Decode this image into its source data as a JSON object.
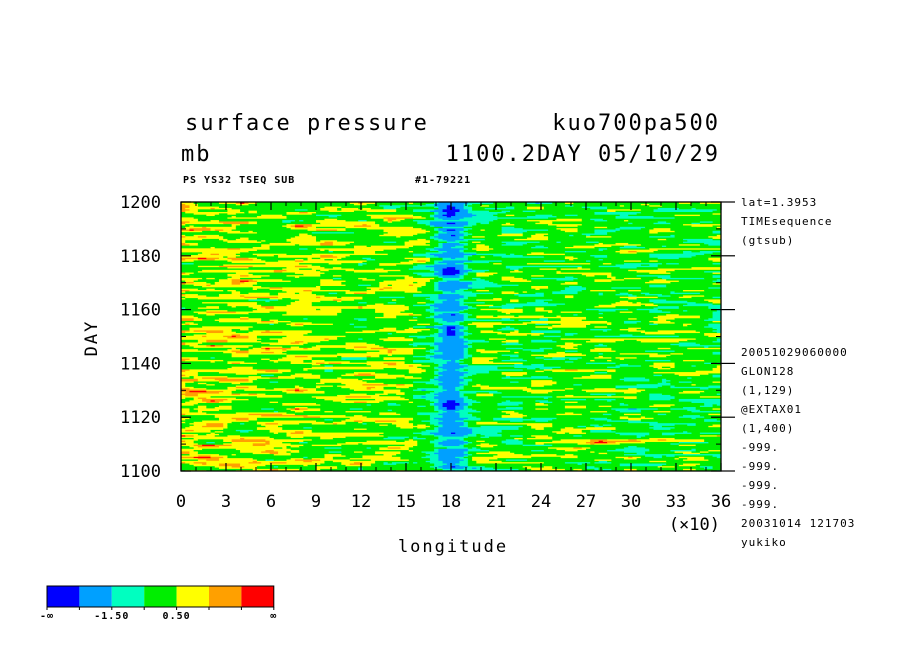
{
  "header": {
    "title_left": "surface pressure",
    "title_right": "kuo700pa500",
    "unit": "mb",
    "subtitle": "1100.2DAY 05/10/29",
    "small_left": "PS YS32 TSEQ SUB",
    "small_right": "#1-79221"
  },
  "side_info": {
    "top": [
      "lat=1.3953",
      "TIMEsequence",
      "(gtsub)"
    ],
    "bottom": [
      "20051029060000",
      "GLON128",
      "(1,129)",
      "@EXTAX01",
      "(1,400)",
      "-999.",
      "-999.",
      "-999.",
      "-999.",
      "20031014 121703",
      "yukiko"
    ]
  },
  "axes": {
    "xlabel": "longitude",
    "ylabel": "DAY",
    "x_multiplier": "(×10)",
    "x_ticks": [
      "0",
      "3",
      "6",
      "9",
      "12",
      "15",
      "18",
      "21",
      "24",
      "27",
      "30",
      "33",
      "36"
    ],
    "y_ticks": [
      "1100",
      "1120",
      "1140",
      "1160",
      "1180",
      "1200"
    ]
  },
  "colorbar": {
    "colors": [
      "#0000ff",
      "#00a0ff",
      "#00ffc0",
      "#00ee00",
      "#ffff00",
      "#ffa000",
      "#ff0000"
    ],
    "labels": [
      "-∞",
      "-1.50",
      "0.50",
      "∞"
    ]
  },
  "chart_data": {
    "type": "heatmap",
    "title": "surface pressure",
    "xlabel": "longitude",
    "ylabel": "DAY",
    "xlim": [
      0,
      36
    ],
    "ylim": [
      1100,
      1200
    ],
    "x_scale_note": "(×10)",
    "level_colors": {
      "lt_-3.5": "#0000ff",
      "-3.5_to_-1.5": "#00a0ff",
      "-1.5_to_-0.5": "#00ffc0",
      "-0.5_to_0.5": "#00ee00",
      "0.5_to_1.5": "#ffff00",
      "1.5_to_2.5": "#ffa000",
      "gt_2.5": "#ff0000"
    },
    "features": {
      "low_pressure_band_longitude": 18,
      "deep_lows_days": [
        1125,
        1152,
        1174,
        1197
      ],
      "high_pressure_region": "longitude 0-15, days 1100-1200",
      "secondary_high": "longitude 24-30, day 1110"
    }
  }
}
